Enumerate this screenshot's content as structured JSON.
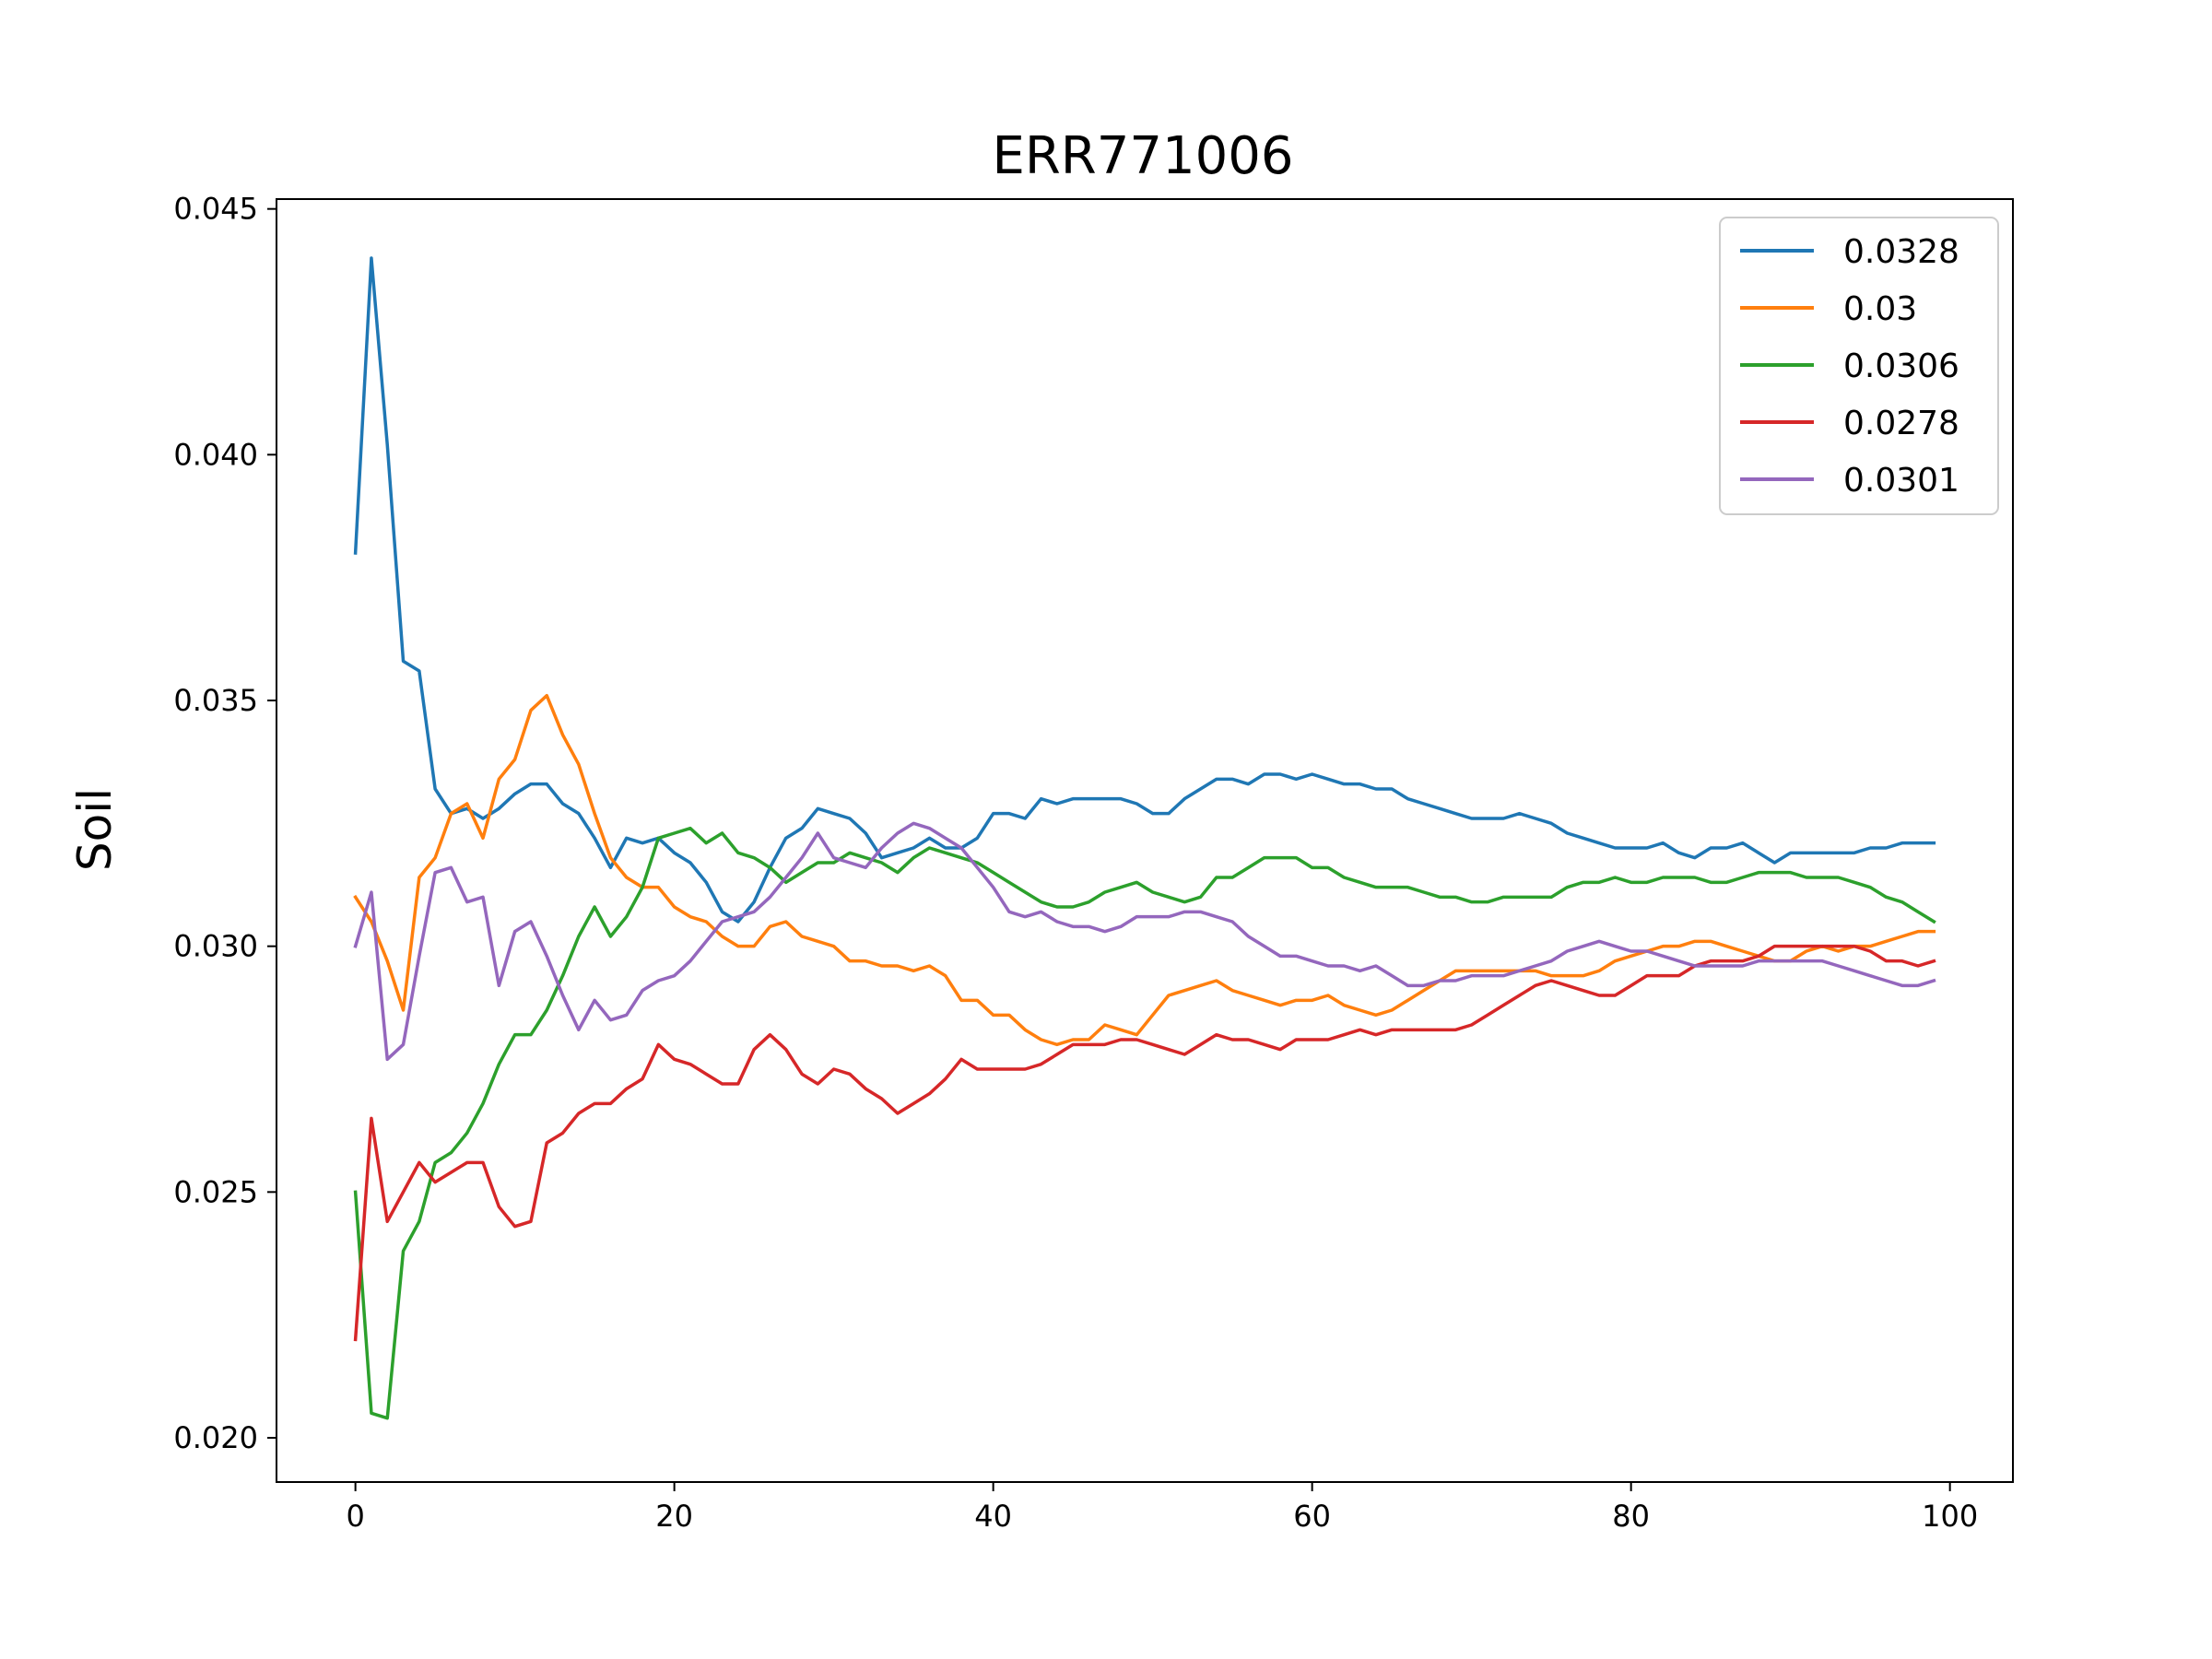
{
  "chart_data": {
    "type": "line",
    "title": "ERR771006",
    "xlabel": "",
    "ylabel": "Soil",
    "xlim": [
      -4.95,
      103.95
    ],
    "ylim": [
      0.0191,
      0.0452
    ],
    "xticks": [
      0,
      20,
      40,
      60,
      80,
      100
    ],
    "yticks": [
      0.02,
      0.025,
      0.03,
      0.035,
      0.04,
      0.045
    ],
    "xtick_labels": [
      "0",
      "20",
      "40",
      "60",
      "80",
      "100"
    ],
    "ytick_labels": [
      "0.020",
      "0.025",
      "0.030",
      "0.035",
      "0.040",
      "0.045"
    ],
    "grid": false,
    "legend_position": "top-right",
    "x": [
      0,
      1,
      2,
      3,
      4,
      5,
      6,
      7,
      8,
      9,
      10,
      11,
      12,
      13,
      14,
      15,
      16,
      17,
      18,
      19,
      20,
      21,
      22,
      23,
      24,
      25,
      26,
      27,
      28,
      29,
      30,
      31,
      32,
      33,
      34,
      35,
      36,
      37,
      38,
      39,
      40,
      41,
      42,
      43,
      44,
      45,
      46,
      47,
      48,
      49,
      50,
      51,
      52,
      53,
      54,
      55,
      56,
      57,
      58,
      59,
      60,
      61,
      62,
      63,
      64,
      65,
      66,
      67,
      68,
      69,
      70,
      71,
      72,
      73,
      74,
      75,
      76,
      77,
      78,
      79,
      80,
      81,
      82,
      83,
      84,
      85,
      86,
      87,
      88,
      89,
      90,
      91,
      92,
      93,
      94,
      95,
      96,
      97,
      98,
      99
    ],
    "series": [
      {
        "name": "0.0328",
        "color": "#1f77b4",
        "values": [
          0.038,
          0.044,
          0.0402,
          0.0358,
          0.0356,
          0.0332,
          0.0327,
          0.0328,
          0.0326,
          0.0328,
          0.0331,
          0.0333,
          0.0333,
          0.0329,
          0.0327,
          0.0322,
          0.0316,
          0.0322,
          0.0321,
          0.0322,
          0.0319,
          0.0317,
          0.0313,
          0.0307,
          0.0305,
          0.0309,
          0.0316,
          0.0322,
          0.0324,
          0.0328,
          0.0327,
          0.0326,
          0.0323,
          0.0318,
          0.0319,
          0.032,
          0.0322,
          0.032,
          0.032,
          0.0322,
          0.0327,
          0.0327,
          0.0326,
          0.033,
          0.0329,
          0.033,
          0.033,
          0.033,
          0.033,
          0.0329,
          0.0327,
          0.0327,
          0.033,
          0.0332,
          0.0334,
          0.0334,
          0.0333,
          0.0335,
          0.0335,
          0.0334,
          0.0335,
          0.0334,
          0.0333,
          0.0333,
          0.0332,
          0.0332,
          0.033,
          0.0329,
          0.0328,
          0.0327,
          0.0326,
          0.0326,
          0.0326,
          0.0327,
          0.0326,
          0.0325,
          0.0323,
          0.0322,
          0.0321,
          0.032,
          0.032,
          0.032,
          0.0321,
          0.0319,
          0.0318,
          0.032,
          0.032,
          0.0321,
          0.0319,
          0.0317,
          0.0319,
          0.0319,
          0.0319,
          0.0319,
          0.0319,
          0.032,
          0.032,
          0.0321,
          0.0321,
          0.0321
        ]
      },
      {
        "name": "0.03",
        "color": "#ff7f0e",
        "values": [
          0.031,
          0.0305,
          0.0297,
          0.0287,
          0.0314,
          0.0318,
          0.0327,
          0.0329,
          0.0322,
          0.0334,
          0.0338,
          0.0348,
          0.0351,
          0.0343,
          0.0337,
          0.0327,
          0.0318,
          0.0314,
          0.0312,
          0.0312,
          0.0308,
          0.0306,
          0.0305,
          0.0302,
          0.03,
          0.03,
          0.0304,
          0.0305,
          0.0302,
          0.0301,
          0.03,
          0.0297,
          0.0297,
          0.0296,
          0.0296,
          0.0295,
          0.0296,
          0.0294,
          0.0289,
          0.0289,
          0.0286,
          0.0286,
          0.0283,
          0.0281,
          0.028,
          0.0281,
          0.0281,
          0.0284,
          0.0283,
          0.0282,
          0.0286,
          0.029,
          0.0291,
          0.0292,
          0.0293,
          0.0291,
          0.029,
          0.0289,
          0.0288,
          0.0289,
          0.0289,
          0.029,
          0.0288,
          0.0287,
          0.0286,
          0.0287,
          0.0289,
          0.0291,
          0.0293,
          0.0295,
          0.0295,
          0.0295,
          0.0295,
          0.0295,
          0.0295,
          0.0294,
          0.0294,
          0.0294,
          0.0295,
          0.0297,
          0.0298,
          0.0299,
          0.03,
          0.03,
          0.0301,
          0.0301,
          0.03,
          0.0299,
          0.0298,
          0.0297,
          0.0297,
          0.0299,
          0.03,
          0.0299,
          0.03,
          0.03,
          0.0301,
          0.0302,
          0.0303,
          0.0303
        ]
      },
      {
        "name": "0.0306",
        "color": "#2ca02c",
        "values": [
          0.025,
          0.0205,
          0.0204,
          0.0238,
          0.0244,
          0.0256,
          0.0258,
          0.0262,
          0.0268,
          0.0276,
          0.0282,
          0.0282,
          0.0287,
          0.0294,
          0.0302,
          0.0308,
          0.0302,
          0.0306,
          0.0312,
          0.0322,
          0.0323,
          0.0324,
          0.0321,
          0.0323,
          0.0319,
          0.0318,
          0.0316,
          0.0313,
          0.0315,
          0.0317,
          0.0317,
          0.0319,
          0.0318,
          0.0317,
          0.0315,
          0.0318,
          0.032,
          0.0319,
          0.0318,
          0.0317,
          0.0315,
          0.0313,
          0.0311,
          0.0309,
          0.0308,
          0.0308,
          0.0309,
          0.0311,
          0.0312,
          0.0313,
          0.0311,
          0.031,
          0.0309,
          0.031,
          0.0314,
          0.0314,
          0.0316,
          0.0318,
          0.0318,
          0.0318,
          0.0316,
          0.0316,
          0.0314,
          0.0313,
          0.0312,
          0.0312,
          0.0312,
          0.0311,
          0.031,
          0.031,
          0.0309,
          0.0309,
          0.031,
          0.031,
          0.031,
          0.031,
          0.0312,
          0.0313,
          0.0313,
          0.0314,
          0.0313,
          0.0313,
          0.0314,
          0.0314,
          0.0314,
          0.0313,
          0.0313,
          0.0314,
          0.0315,
          0.0315,
          0.0315,
          0.0314,
          0.0314,
          0.0314,
          0.0313,
          0.0312,
          0.031,
          0.0309,
          0.0307,
          0.0305
        ]
      },
      {
        "name": "0.0278",
        "color": "#d62728",
        "values": [
          0.022,
          0.0265,
          0.0244,
          0.025,
          0.0256,
          0.0252,
          0.0254,
          0.0256,
          0.0256,
          0.0247,
          0.0243,
          0.0244,
          0.026,
          0.0262,
          0.0266,
          0.0268,
          0.0268,
          0.0271,
          0.0273,
          0.028,
          0.0277,
          0.0276,
          0.0274,
          0.0272,
          0.0272,
          0.0279,
          0.0282,
          0.0279,
          0.0274,
          0.0272,
          0.0275,
          0.0274,
          0.0271,
          0.0269,
          0.0266,
          0.0268,
          0.027,
          0.0273,
          0.0277,
          0.0275,
          0.0275,
          0.0275,
          0.0275,
          0.0276,
          0.0278,
          0.028,
          0.028,
          0.028,
          0.0281,
          0.0281,
          0.028,
          0.0279,
          0.0278,
          0.028,
          0.0282,
          0.0281,
          0.0281,
          0.028,
          0.0279,
          0.0281,
          0.0281,
          0.0281,
          0.0282,
          0.0283,
          0.0282,
          0.0283,
          0.0283,
          0.0283,
          0.0283,
          0.0283,
          0.0284,
          0.0286,
          0.0288,
          0.029,
          0.0292,
          0.0293,
          0.0292,
          0.0291,
          0.029,
          0.029,
          0.0292,
          0.0294,
          0.0294,
          0.0294,
          0.0296,
          0.0297,
          0.0297,
          0.0297,
          0.0298,
          0.03,
          0.03,
          0.03,
          0.03,
          0.03,
          0.03,
          0.0299,
          0.0297,
          0.0297,
          0.0296,
          0.0297
        ]
      },
      {
        "name": "0.0301",
        "color": "#9467bd",
        "values": [
          0.03,
          0.0311,
          0.0277,
          0.028,
          0.0298,
          0.0315,
          0.0316,
          0.0309,
          0.031,
          0.0292,
          0.0303,
          0.0305,
          0.0298,
          0.029,
          0.0283,
          0.0289,
          0.0285,
          0.0286,
          0.0291,
          0.0293,
          0.0294,
          0.0297,
          0.0301,
          0.0305,
          0.0306,
          0.0307,
          0.031,
          0.0314,
          0.0318,
          0.0323,
          0.0318,
          0.0317,
          0.0316,
          0.032,
          0.0323,
          0.0325,
          0.0324,
          0.0322,
          0.032,
          0.0316,
          0.0312,
          0.0307,
          0.0306,
          0.0307,
          0.0305,
          0.0304,
          0.0304,
          0.0303,
          0.0304,
          0.0306,
          0.0306,
          0.0306,
          0.0307,
          0.0307,
          0.0306,
          0.0305,
          0.0302,
          0.03,
          0.0298,
          0.0298,
          0.0297,
          0.0296,
          0.0296,
          0.0295,
          0.0296,
          0.0294,
          0.0292,
          0.0292,
          0.0293,
          0.0293,
          0.0294,
          0.0294,
          0.0294,
          0.0295,
          0.0296,
          0.0297,
          0.0299,
          0.03,
          0.0301,
          0.03,
          0.0299,
          0.0299,
          0.0298,
          0.0297,
          0.0296,
          0.0296,
          0.0296,
          0.0296,
          0.0297,
          0.0297,
          0.0297,
          0.0297,
          0.0297,
          0.0296,
          0.0295,
          0.0294,
          0.0293,
          0.0292,
          0.0292,
          0.0293
        ]
      }
    ]
  }
}
